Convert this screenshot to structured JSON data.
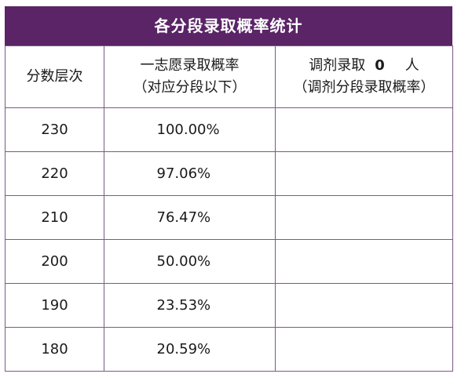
{
  "title": "各分段录取概率统计",
  "headers": {
    "col1": "分数层次",
    "col2_line1": "一志愿录取概率",
    "col2_line2": "（对应分段以下）",
    "col3_prefix": "调剂录取",
    "col3_count": "0",
    "col3_suffix": "人",
    "col3_line2": "（调剂分段录取概率）"
  },
  "rows": [
    {
      "score": "230",
      "rate": "100.00%",
      "adjust": ""
    },
    {
      "score": "220",
      "rate": "97.06%",
      "adjust": ""
    },
    {
      "score": "210",
      "rate": "76.47%",
      "adjust": ""
    },
    {
      "score": "200",
      "rate": "50.00%",
      "adjust": ""
    },
    {
      "score": "190",
      "rate": "23.53%",
      "adjust": ""
    },
    {
      "score": "180",
      "rate": "20.59%",
      "adjust": ""
    }
  ]
}
